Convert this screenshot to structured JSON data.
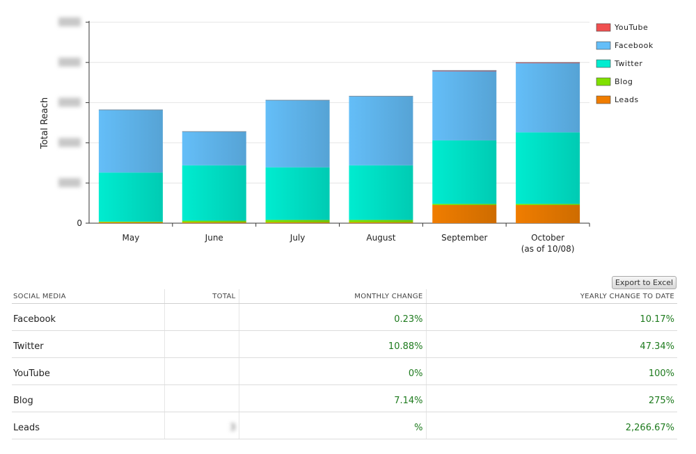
{
  "chart_data": {
    "type": "bar",
    "stacked": true,
    "categories": [
      "May",
      "June",
      "July",
      "August",
      "September",
      "October"
    ],
    "category_sublabels": [
      "",
      "",
      "",
      "",
      "",
      "(as of 10/08)"
    ],
    "ylabel": "Total Reach",
    "ytick_labels": [
      "0",
      "",
      "",
      "",
      "",
      ""
    ],
    "ylim": [
      0,
      5
    ],
    "grid": true,
    "legend_position": "right",
    "series": [
      {
        "name": "Leads",
        "color": "#f07d00",
        "values": [
          0.02,
          0.02,
          0.02,
          0.02,
          0.45,
          0.45
        ]
      },
      {
        "name": "Blog",
        "color": "#80e000",
        "values": [
          0.02,
          0.04,
          0.06,
          0.06,
          0.03,
          0.03
        ]
      },
      {
        "name": "Twitter",
        "color": "#00ecd0",
        "values": [
          1.22,
          1.38,
          1.31,
          1.36,
          1.58,
          1.78
        ]
      },
      {
        "name": "Facebook",
        "color": "#64bef8",
        "values": [
          1.56,
          0.84,
          1.67,
          1.72,
          1.72,
          1.72
        ]
      },
      {
        "name": "YouTube",
        "color": "#f05050",
        "values": [
          0.0,
          0.0,
          0.0,
          0.0,
          0.02,
          0.02
        ]
      }
    ],
    "legend_order": [
      "YouTube",
      "Facebook",
      "Twitter",
      "Blog",
      "Leads"
    ]
  },
  "export_label": "Export to Excel",
  "table": {
    "headers": {
      "social_media": "SOCIAL MEDIA",
      "total": "TOTAL",
      "monthly": "MONTHLY CHANGE",
      "yearly": "YEARLY CHANGE TO DATE"
    },
    "rows": [
      {
        "name": "Facebook",
        "total": "",
        "monthly": "0.23%",
        "yearly": "10.17%"
      },
      {
        "name": "Twitter",
        "total": "",
        "monthly": "10.88%",
        "yearly": "47.34%"
      },
      {
        "name": "YouTube",
        "total": "",
        "monthly": "0%",
        "yearly": "100%"
      },
      {
        "name": "Blog",
        "total": "",
        "monthly": "7.14%",
        "yearly": "275%"
      },
      {
        "name": "Leads",
        "total": "3",
        "monthly": "%",
        "yearly": "2,266.67%"
      }
    ]
  }
}
